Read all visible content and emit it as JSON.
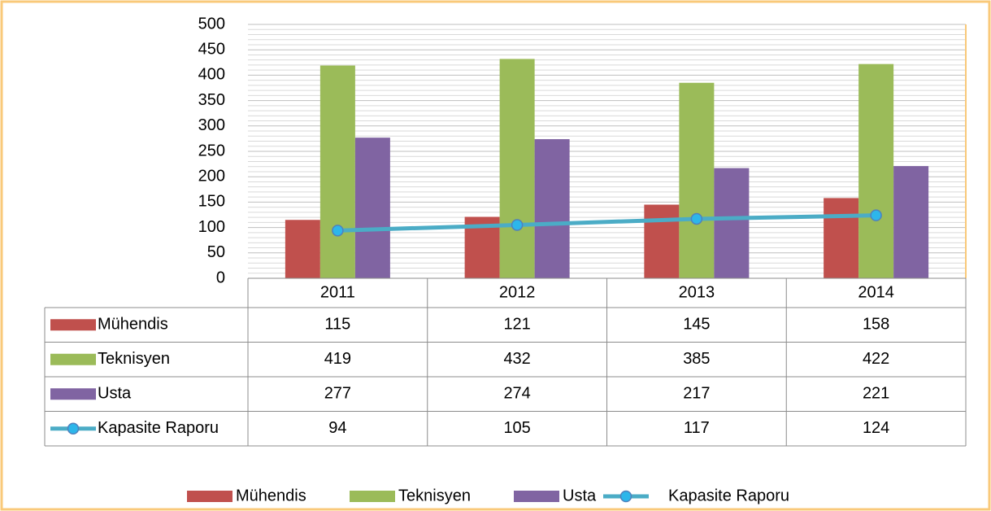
{
  "chart_data": {
    "type": "bar",
    "categories": [
      "2011",
      "2012",
      "2013",
      "2014"
    ],
    "series": [
      {
        "name": "Mühendis",
        "color": "#c0504d",
        "values": [
          115,
          121,
          145,
          158
        ]
      },
      {
        "name": "Teknisyen",
        "color": "#9bbb59",
        "values": [
          419,
          432,
          385,
          422
        ]
      },
      {
        "name": "Usta",
        "color": "#8064a2",
        "values": [
          277,
          274,
          217,
          221
        ]
      },
      {
        "name": "Kapasite Raporu",
        "type": "line",
        "color": "#4bacc6",
        "marker_color": "#2db6ea",
        "values": [
          94,
          105,
          117,
          124
        ]
      }
    ],
    "ylim": [
      0,
      500
    ],
    "yticks": [
      0,
      50,
      100,
      150,
      200,
      250,
      300,
      350,
      400,
      450,
      500
    ],
    "grid": true,
    "minor_grid": true,
    "data_table": true,
    "legend": "bottom"
  }
}
